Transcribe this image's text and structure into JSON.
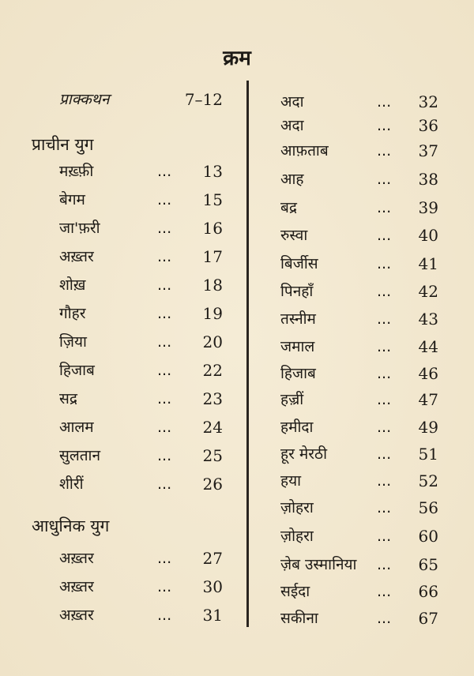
{
  "title": "क्रम",
  "preface": {
    "name": "प्राक्कथन",
    "page": "7–12"
  },
  "sections": [
    {
      "heading": "प्राचीन युग",
      "entries": [
        {
          "name": "मख़्फ़ी",
          "page": "13"
        },
        {
          "name": "बेगम",
          "page": "15"
        },
        {
          "name": "जा'फ़री",
          "page": "16"
        },
        {
          "name": "अख़्तर",
          "page": "17"
        },
        {
          "name": "शोख़",
          "page": "18"
        },
        {
          "name": "गौहर",
          "page": "19"
        },
        {
          "name": "ज़िया",
          "page": "20"
        },
        {
          "name": "हिजाब",
          "page": "22"
        },
        {
          "name": "सद्र",
          "page": "23"
        },
        {
          "name": "आलम",
          "page": "24"
        },
        {
          "name": "सुलतान",
          "page": "25"
        },
        {
          "name": "शीरीं",
          "page": "26"
        }
      ]
    },
    {
      "heading": "आधुनिक युग",
      "entries": [
        {
          "name": "अख़्तर",
          "page": "27"
        },
        {
          "name": "अख़्तर",
          "page": "30"
        },
        {
          "name": "अख़्तर",
          "page": "31"
        },
        {
          "name": "अदा",
          "page": "32"
        },
        {
          "name": "अदा",
          "page": "36"
        },
        {
          "name": "आफ़ताब",
          "page": "37"
        },
        {
          "name": "आह",
          "page": "38"
        },
        {
          "name": "बद्र",
          "page": "39"
        },
        {
          "name": "रुस्वा",
          "page": "40"
        },
        {
          "name": "बिर्जीस",
          "page": "41"
        },
        {
          "name": "पिनहाँ",
          "page": "42"
        },
        {
          "name": "तस्नीम",
          "page": "43"
        },
        {
          "name": "जमाल",
          "page": "44"
        },
        {
          "name": "हिजाब",
          "page": "46"
        },
        {
          "name": "हज़्रीं",
          "page": "47"
        },
        {
          "name": "हमीदा",
          "page": "49"
        },
        {
          "name": "हूर मेरठी",
          "page": "51"
        },
        {
          "name": "हया",
          "page": "52"
        },
        {
          "name": "ज़ोहरा",
          "page": "56"
        },
        {
          "name": "ज़ोहरा",
          "page": "60"
        },
        {
          "name": "ज़ेब उस्मानिया",
          "page": "65"
        },
        {
          "name": "सईदा",
          "page": "66"
        },
        {
          "name": "सकीना",
          "page": "67"
        }
      ]
    }
  ],
  "leader": "..."
}
